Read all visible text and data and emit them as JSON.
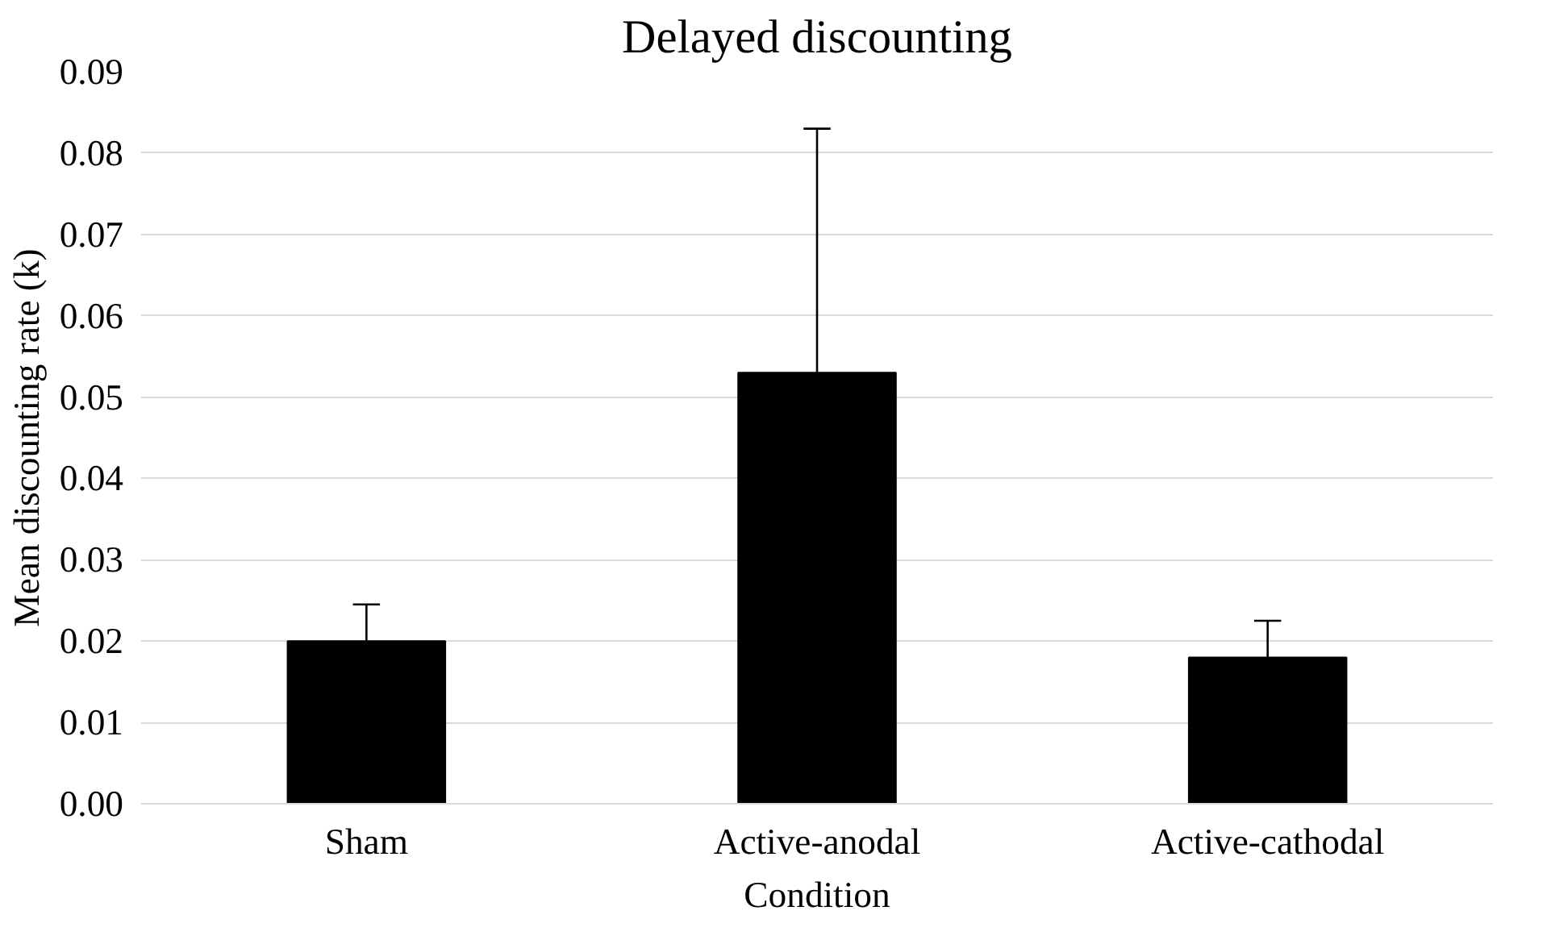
{
  "chart_data": {
    "type": "bar",
    "title": "Delayed discounting",
    "xlabel": "Condition",
    "ylabel": "Mean discounting rate (k)",
    "categories": [
      "Sham",
      "Active-anodal",
      "Active-cathodal"
    ],
    "values": [
      0.02,
      0.053,
      0.018
    ],
    "errors": [
      [
        0.02,
        0.0245
      ],
      [
        0.053,
        0.083
      ],
      [
        0.018,
        0.0225
      ]
    ],
    "color": "#000000",
    "ylim": [
      0,
      0.09
    ],
    "yticks": [
      {
        "value": 0,
        "label": "0.00"
      },
      {
        "value": 0.01,
        "label": "0.01"
      },
      {
        "value": 0.02,
        "label": "0.02"
      },
      {
        "value": 0.03,
        "label": "0.03"
      },
      {
        "value": 0.04,
        "label": "0.04"
      },
      {
        "value": 0.05,
        "label": "0.05"
      },
      {
        "value": 0.06,
        "label": "0.06"
      },
      {
        "value": 0.07,
        "label": "0.07"
      },
      {
        "value": 0.08,
        "label": "0.08"
      },
      {
        "value": 0.09,
        "label": "0.09"
      }
    ],
    "grid": "y"
  }
}
